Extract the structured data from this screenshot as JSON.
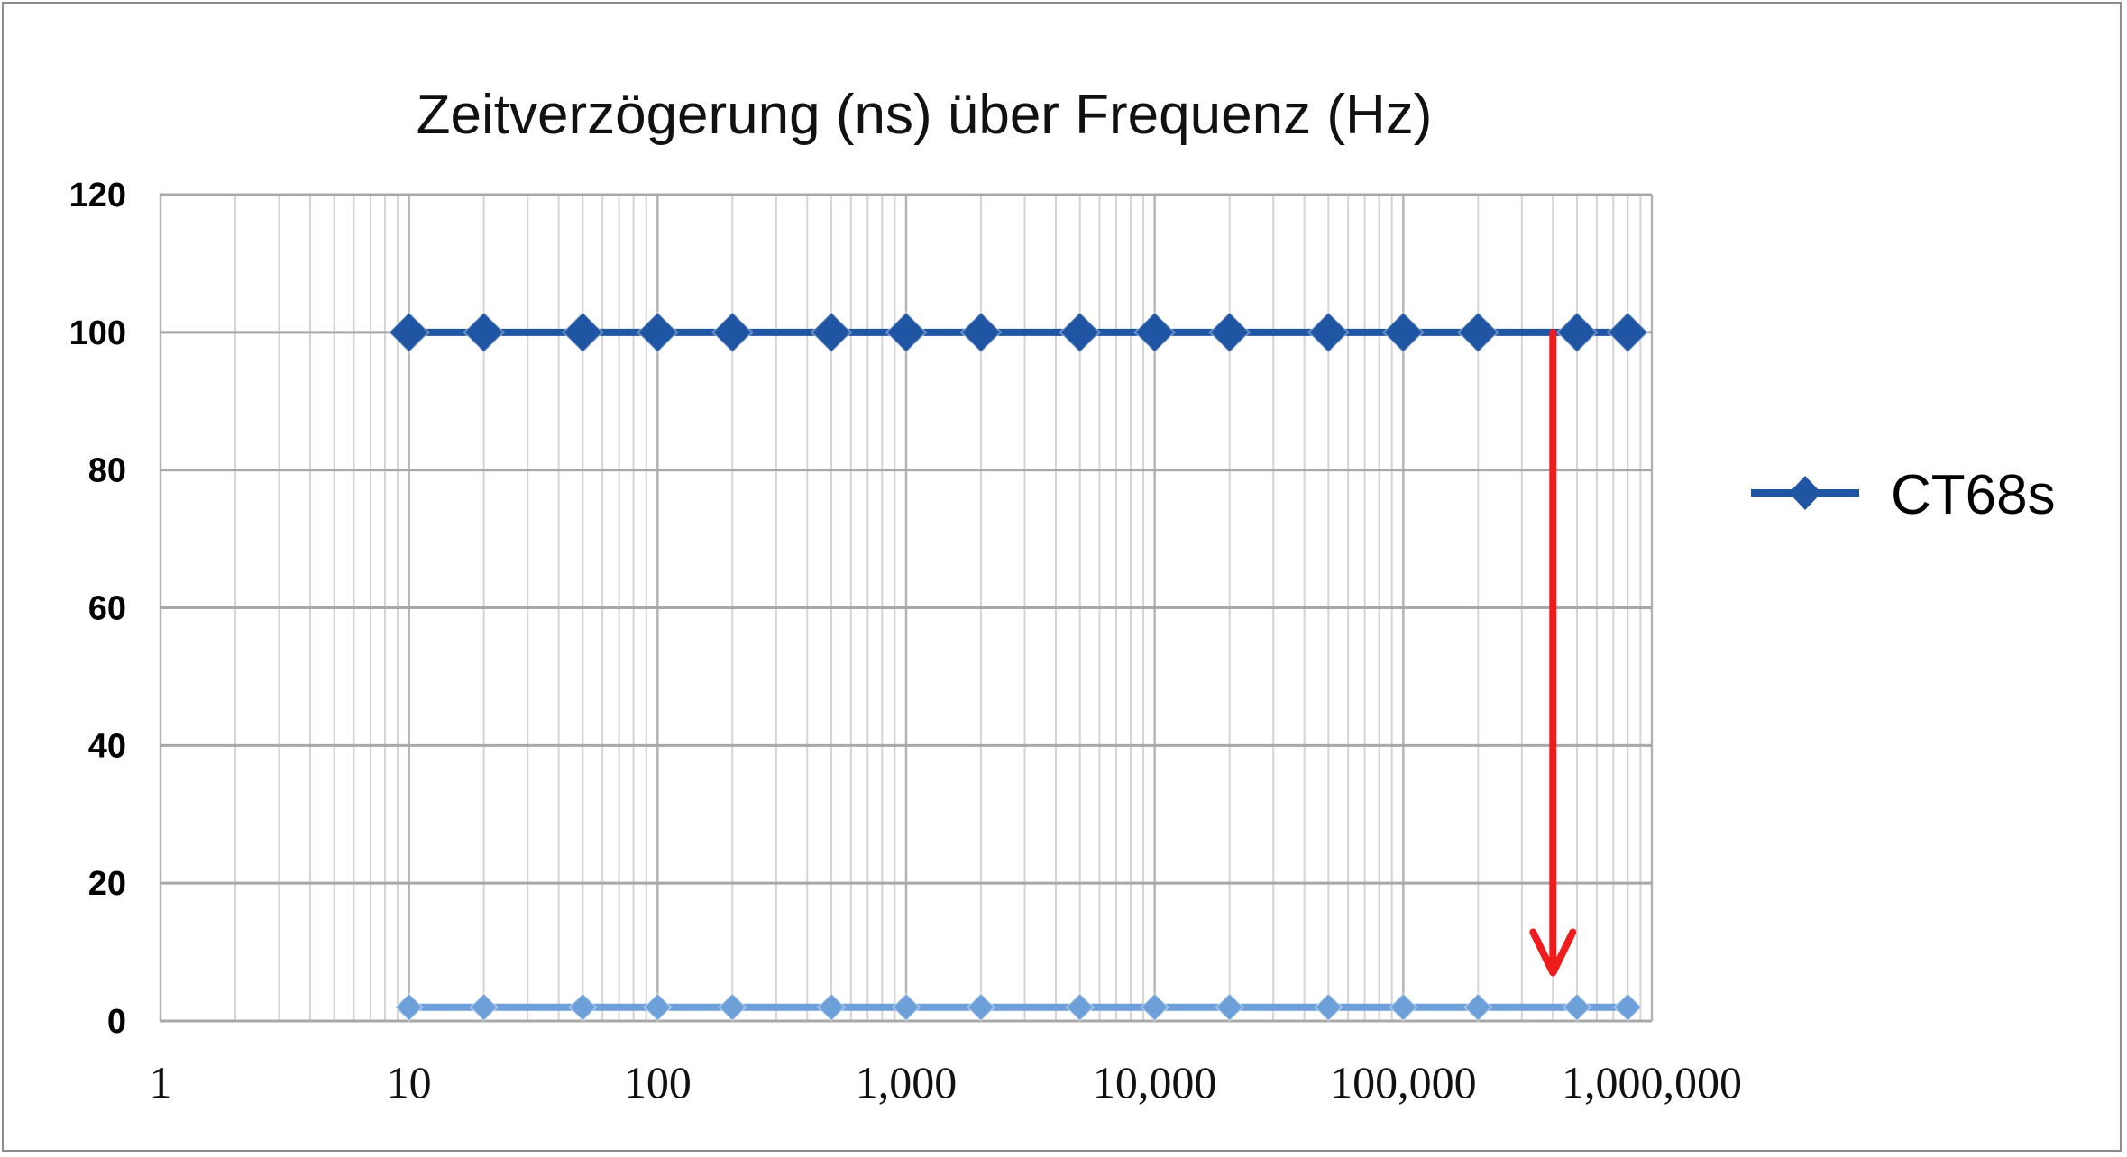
{
  "chart_data": {
    "type": "line",
    "title": "Zeitverzögerung (ns) über Frequenz (Hz)",
    "xlabel": "",
    "ylabel": "",
    "x_scale": "log",
    "xlim": [
      1,
      1000000
    ],
    "ylim": [
      0,
      120
    ],
    "yticks": [
      "0",
      "20",
      "40",
      "60",
      "80",
      "100",
      "120"
    ],
    "xticks": [
      "1",
      "10",
      "100",
      "1,000",
      "10,000",
      "100,000",
      "1,000,000"
    ],
    "grid": true,
    "legend_position": "right",
    "x": [
      10,
      20,
      50,
      100,
      200,
      500,
      1000,
      2000,
      5000,
      10000,
      20000,
      50000,
      100000,
      200000,
      500000,
      800000
    ],
    "series": [
      {
        "name": "CT68s",
        "color": "#1f55a3",
        "values": [
          100,
          100,
          100,
          100,
          100,
          100,
          100,
          100,
          100,
          100,
          100,
          100,
          100,
          100,
          100,
          100
        ]
      },
      {
        "name": "",
        "color": "#6d9fd8",
        "values": [
          2,
          2,
          2,
          2,
          2,
          2,
          2,
          2,
          2,
          2,
          2,
          2,
          2,
          2,
          2,
          2
        ]
      }
    ],
    "annotation": {
      "type": "arrow",
      "color": "#ee1c1c",
      "x": 400000,
      "y_from": 100,
      "y_to": 7
    }
  }
}
